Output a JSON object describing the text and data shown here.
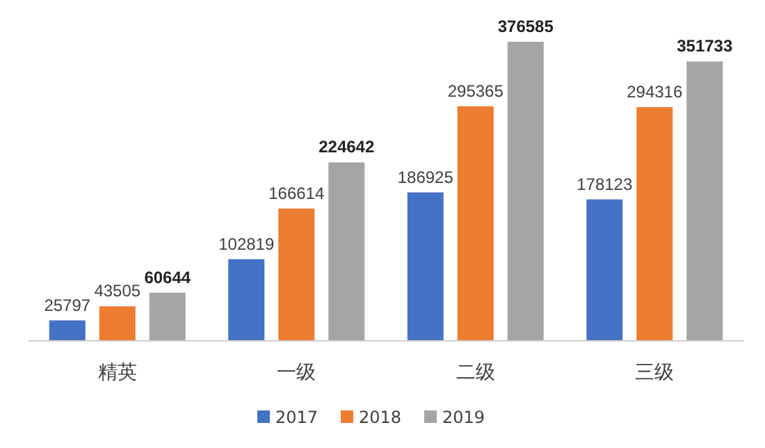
{
  "chart_data": {
    "type": "bar",
    "categories": [
      "精英",
      "一级",
      "二级",
      "三级"
    ],
    "series": [
      {
        "name": "2017",
        "color": "#4472c4",
        "values": [
          25797,
          102819,
          186925,
          178123
        ]
      },
      {
        "name": "2018",
        "color": "#ed7d31",
        "values": [
          43505,
          166614,
          295365,
          294316
        ]
      },
      {
        "name": "2019",
        "color": "#a5a5a5",
        "values": [
          60644,
          224642,
          376585,
          351733
        ]
      }
    ],
    "data_labels": true,
    "legend": "bottom"
  }
}
